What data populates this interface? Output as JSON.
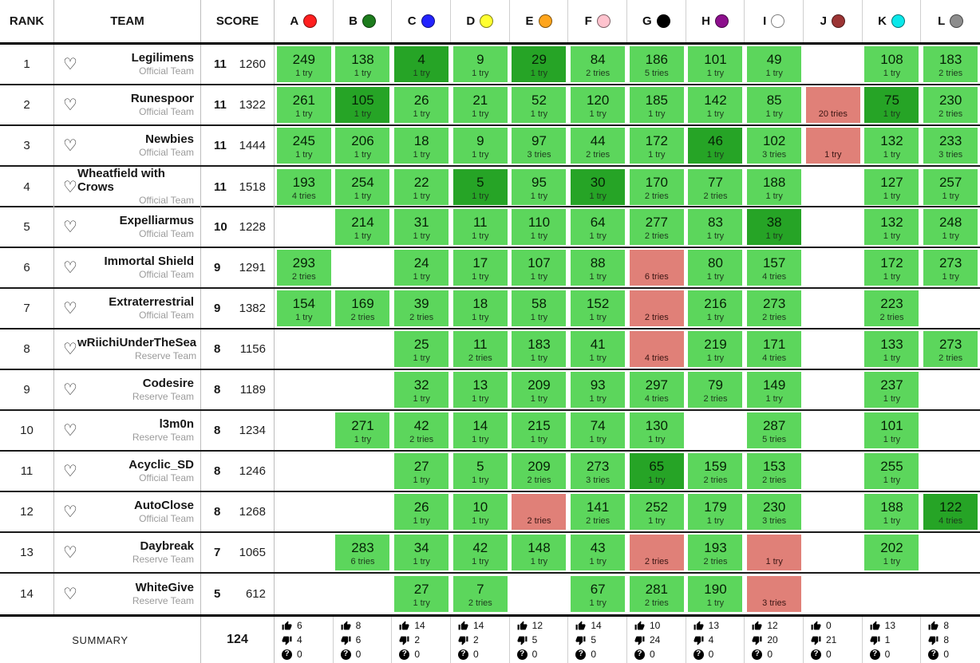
{
  "header": {
    "rank_label": "RANK",
    "team_label": "TEAM",
    "score_label": "SCORE",
    "problems": [
      {
        "letter": "A",
        "color": "#ff1f1f"
      },
      {
        "letter": "B",
        "color": "#1d7c1d"
      },
      {
        "letter": "C",
        "color": "#2323ff"
      },
      {
        "letter": "D",
        "color": "#ffff30"
      },
      {
        "letter": "E",
        "color": "#ffa51c"
      },
      {
        "letter": "F",
        "color": "#ffc3ce"
      },
      {
        "letter": "G",
        "color": "#000000"
      },
      {
        "letter": "H",
        "color": "#8d0f8d"
      },
      {
        "letter": "I",
        "color": "#ffffff"
      },
      {
        "letter": "J",
        "color": "#9c3434"
      },
      {
        "letter": "K",
        "color": "#0ae8ea"
      },
      {
        "letter": "L",
        "color": "#8d8d8d"
      }
    ]
  },
  "colors": {
    "solved": "#5cd65c",
    "first_to_solve": "#26a426",
    "failed": "#e08078"
  },
  "rows": [
    {
      "rank": "1",
      "name": "Legilimens",
      "type": "Official Team",
      "solved": "11",
      "penalty": "1260",
      "cells": [
        {
          "state": "solved",
          "time": "249",
          "tries": "1 try"
        },
        {
          "state": "solved",
          "time": "138",
          "tries": "1 try"
        },
        {
          "state": "first",
          "time": "4",
          "tries": "1 try"
        },
        {
          "state": "solved",
          "time": "9",
          "tries": "1 try"
        },
        {
          "state": "first",
          "time": "29",
          "tries": "1 try"
        },
        {
          "state": "solved",
          "time": "84",
          "tries": "2 tries"
        },
        {
          "state": "solved",
          "time": "186",
          "tries": "5 tries"
        },
        {
          "state": "solved",
          "time": "101",
          "tries": "1 try"
        },
        {
          "state": "solved",
          "time": "49",
          "tries": "1 try"
        },
        {
          "state": "empty"
        },
        {
          "state": "solved",
          "time": "108",
          "tries": "1 try"
        },
        {
          "state": "solved",
          "time": "183",
          "tries": "2 tries"
        }
      ]
    },
    {
      "rank": "2",
      "name": "Runespoor",
      "type": "Official Team",
      "solved": "11",
      "penalty": "1322",
      "cells": [
        {
          "state": "solved",
          "time": "261",
          "tries": "1 try"
        },
        {
          "state": "first",
          "time": "105",
          "tries": "1 try"
        },
        {
          "state": "solved",
          "time": "26",
          "tries": "1 try"
        },
        {
          "state": "solved",
          "time": "21",
          "tries": "1 try"
        },
        {
          "state": "solved",
          "time": "52",
          "tries": "1 try"
        },
        {
          "state": "solved",
          "time": "120",
          "tries": "1 try"
        },
        {
          "state": "solved",
          "time": "185",
          "tries": "1 try"
        },
        {
          "state": "solved",
          "time": "142",
          "tries": "1 try"
        },
        {
          "state": "solved",
          "time": "85",
          "tries": "1 try"
        },
        {
          "state": "failed",
          "tries": "20 tries"
        },
        {
          "state": "first",
          "time": "75",
          "tries": "1 try"
        },
        {
          "state": "solved",
          "time": "230",
          "tries": "2 tries"
        }
      ]
    },
    {
      "rank": "3",
      "name": "Newbies",
      "type": "Official Team",
      "solved": "11",
      "penalty": "1444",
      "cells": [
        {
          "state": "solved",
          "time": "245",
          "tries": "1 try"
        },
        {
          "state": "solved",
          "time": "206",
          "tries": "1 try"
        },
        {
          "state": "solved",
          "time": "18",
          "tries": "1 try"
        },
        {
          "state": "solved",
          "time": "9",
          "tries": "1 try"
        },
        {
          "state": "solved",
          "time": "97",
          "tries": "3 tries"
        },
        {
          "state": "solved",
          "time": "44",
          "tries": "2 tries"
        },
        {
          "state": "solved",
          "time": "172",
          "tries": "1 try"
        },
        {
          "state": "first",
          "time": "46",
          "tries": "1 try"
        },
        {
          "state": "solved",
          "time": "102",
          "tries": "3 tries"
        },
        {
          "state": "failed",
          "tries": "1 try"
        },
        {
          "state": "solved",
          "time": "132",
          "tries": "1 try"
        },
        {
          "state": "solved",
          "time": "233",
          "tries": "3 tries"
        }
      ]
    },
    {
      "rank": "4",
      "name": "Wheatfield with Crows",
      "type": "Official Team",
      "solved": "11",
      "penalty": "1518",
      "cells": [
        {
          "state": "solved",
          "time": "193",
          "tries": "4 tries"
        },
        {
          "state": "solved",
          "time": "254",
          "tries": "1 try"
        },
        {
          "state": "solved",
          "time": "22",
          "tries": "1 try"
        },
        {
          "state": "first",
          "time": "5",
          "tries": "1 try"
        },
        {
          "state": "solved",
          "time": "95",
          "tries": "1 try"
        },
        {
          "state": "first",
          "time": "30",
          "tries": "1 try"
        },
        {
          "state": "solved",
          "time": "170",
          "tries": "2 tries"
        },
        {
          "state": "solved",
          "time": "77",
          "tries": "2 tries"
        },
        {
          "state": "solved",
          "time": "188",
          "tries": "1 try"
        },
        {
          "state": "empty"
        },
        {
          "state": "solved",
          "time": "127",
          "tries": "1 try"
        },
        {
          "state": "solved",
          "time": "257",
          "tries": "1 try"
        }
      ]
    },
    {
      "rank": "5",
      "name": "Expelliarmus",
      "type": "Official Team",
      "solved": "10",
      "penalty": "1228",
      "cells": [
        {
          "state": "empty"
        },
        {
          "state": "solved",
          "time": "214",
          "tries": "1 try"
        },
        {
          "state": "solved",
          "time": "31",
          "tries": "1 try"
        },
        {
          "state": "solved",
          "time": "11",
          "tries": "1 try"
        },
        {
          "state": "solved",
          "time": "110",
          "tries": "1 try"
        },
        {
          "state": "solved",
          "time": "64",
          "tries": "1 try"
        },
        {
          "state": "solved",
          "time": "277",
          "tries": "2 tries"
        },
        {
          "state": "solved",
          "time": "83",
          "tries": "1 try"
        },
        {
          "state": "first",
          "time": "38",
          "tries": "1 try"
        },
        {
          "state": "empty"
        },
        {
          "state": "solved",
          "time": "132",
          "tries": "1 try"
        },
        {
          "state": "solved",
          "time": "248",
          "tries": "1 try"
        }
      ]
    },
    {
      "rank": "6",
      "name": "Immortal Shield",
      "type": "Official Team",
      "solved": "9",
      "penalty": "1291",
      "cells": [
        {
          "state": "solved",
          "time": "293",
          "tries": "2 tries"
        },
        {
          "state": "empty"
        },
        {
          "state": "solved",
          "time": "24",
          "tries": "1 try"
        },
        {
          "state": "solved",
          "time": "17",
          "tries": "1 try"
        },
        {
          "state": "solved",
          "time": "107",
          "tries": "1 try"
        },
        {
          "state": "solved",
          "time": "88",
          "tries": "1 try"
        },
        {
          "state": "failed",
          "tries": "6 tries"
        },
        {
          "state": "solved",
          "time": "80",
          "tries": "1 try"
        },
        {
          "state": "solved",
          "time": "157",
          "tries": "4 tries"
        },
        {
          "state": "empty"
        },
        {
          "state": "solved",
          "time": "172",
          "tries": "1 try"
        },
        {
          "state": "solved",
          "time": "273",
          "tries": "1 try"
        }
      ]
    },
    {
      "rank": "7",
      "name": "Extraterrestrial",
      "type": "Official Team",
      "solved": "9",
      "penalty": "1382",
      "cells": [
        {
          "state": "solved",
          "time": "154",
          "tries": "1 try"
        },
        {
          "state": "solved",
          "time": "169",
          "tries": "2 tries"
        },
        {
          "state": "solved",
          "time": "39",
          "tries": "2 tries"
        },
        {
          "state": "solved",
          "time": "18",
          "tries": "1 try"
        },
        {
          "state": "solved",
          "time": "58",
          "tries": "1 try"
        },
        {
          "state": "solved",
          "time": "152",
          "tries": "1 try"
        },
        {
          "state": "failed",
          "tries": "2 tries"
        },
        {
          "state": "solved",
          "time": "216",
          "tries": "1 try"
        },
        {
          "state": "solved",
          "time": "273",
          "tries": "2 tries"
        },
        {
          "state": "empty"
        },
        {
          "state": "solved",
          "time": "223",
          "tries": "2 tries"
        },
        {
          "state": "empty"
        }
      ]
    },
    {
      "rank": "8",
      "name": "wRiichiUnderTheSea",
      "type": "Reserve Team",
      "solved": "8",
      "penalty": "1156",
      "cells": [
        {
          "state": "empty"
        },
        {
          "state": "empty"
        },
        {
          "state": "solved",
          "time": "25",
          "tries": "1 try"
        },
        {
          "state": "solved",
          "time": "11",
          "tries": "2 tries"
        },
        {
          "state": "solved",
          "time": "183",
          "tries": "1 try"
        },
        {
          "state": "solved",
          "time": "41",
          "tries": "1 try"
        },
        {
          "state": "failed",
          "tries": "4 tries"
        },
        {
          "state": "solved",
          "time": "219",
          "tries": "1 try"
        },
        {
          "state": "solved",
          "time": "171",
          "tries": "4 tries"
        },
        {
          "state": "empty"
        },
        {
          "state": "solved",
          "time": "133",
          "tries": "1 try"
        },
        {
          "state": "solved",
          "time": "273",
          "tries": "2 tries"
        }
      ]
    },
    {
      "rank": "9",
      "name": "Codesire",
      "type": "Reserve Team",
      "solved": "8",
      "penalty": "1189",
      "cells": [
        {
          "state": "empty"
        },
        {
          "state": "empty"
        },
        {
          "state": "solved",
          "time": "32",
          "tries": "1 try"
        },
        {
          "state": "solved",
          "time": "13",
          "tries": "1 try"
        },
        {
          "state": "solved",
          "time": "209",
          "tries": "1 try"
        },
        {
          "state": "solved",
          "time": "93",
          "tries": "1 try"
        },
        {
          "state": "solved",
          "time": "297",
          "tries": "4 tries"
        },
        {
          "state": "solved",
          "time": "79",
          "tries": "2 tries"
        },
        {
          "state": "solved",
          "time": "149",
          "tries": "1 try"
        },
        {
          "state": "empty"
        },
        {
          "state": "solved",
          "time": "237",
          "tries": "1 try"
        },
        {
          "state": "empty"
        }
      ]
    },
    {
      "rank": "10",
      "name": "l3m0n",
      "type": "Reserve Team",
      "solved": "8",
      "penalty": "1234",
      "cells": [
        {
          "state": "empty"
        },
        {
          "state": "solved",
          "time": "271",
          "tries": "1 try"
        },
        {
          "state": "solved",
          "time": "42",
          "tries": "2 tries"
        },
        {
          "state": "solved",
          "time": "14",
          "tries": "1 try"
        },
        {
          "state": "solved",
          "time": "215",
          "tries": "1 try"
        },
        {
          "state": "solved",
          "time": "74",
          "tries": "1 try"
        },
        {
          "state": "solved",
          "time": "130",
          "tries": "1 try"
        },
        {
          "state": "empty"
        },
        {
          "state": "solved",
          "time": "287",
          "tries": "5 tries"
        },
        {
          "state": "empty"
        },
        {
          "state": "solved",
          "time": "101",
          "tries": "1 try"
        },
        {
          "state": "empty"
        }
      ]
    },
    {
      "rank": "11",
      "name": "Acyclic_SD",
      "type": "Official Team",
      "solved": "8",
      "penalty": "1246",
      "cells": [
        {
          "state": "empty"
        },
        {
          "state": "empty"
        },
        {
          "state": "solved",
          "time": "27",
          "tries": "1 try"
        },
        {
          "state": "solved",
          "time": "5",
          "tries": "1 try"
        },
        {
          "state": "solved",
          "time": "209",
          "tries": "2 tries"
        },
        {
          "state": "solved",
          "time": "273",
          "tries": "3 tries"
        },
        {
          "state": "first",
          "time": "65",
          "tries": "1 try"
        },
        {
          "state": "solved",
          "time": "159",
          "tries": "2 tries"
        },
        {
          "state": "solved",
          "time": "153",
          "tries": "2 tries"
        },
        {
          "state": "empty"
        },
        {
          "state": "solved",
          "time": "255",
          "tries": "1 try"
        },
        {
          "state": "empty"
        }
      ]
    },
    {
      "rank": "12",
      "name": "AutoClose",
      "type": "Official Team",
      "solved": "8",
      "penalty": "1268",
      "cells": [
        {
          "state": "empty"
        },
        {
          "state": "empty"
        },
        {
          "state": "solved",
          "time": "26",
          "tries": "1 try"
        },
        {
          "state": "solved",
          "time": "10",
          "tries": "1 try"
        },
        {
          "state": "failed",
          "tries": "2 tries"
        },
        {
          "state": "solved",
          "time": "141",
          "tries": "2 tries"
        },
        {
          "state": "solved",
          "time": "252",
          "tries": "1 try"
        },
        {
          "state": "solved",
          "time": "179",
          "tries": "1 try"
        },
        {
          "state": "solved",
          "time": "230",
          "tries": "3 tries"
        },
        {
          "state": "empty"
        },
        {
          "state": "solved",
          "time": "188",
          "tries": "1 try"
        },
        {
          "state": "first",
          "time": "122",
          "tries": "4 tries"
        }
      ]
    },
    {
      "rank": "13",
      "name": "Daybreak",
      "type": "Reserve Team",
      "solved": "7",
      "penalty": "1065",
      "cells": [
        {
          "state": "empty"
        },
        {
          "state": "solved",
          "time": "283",
          "tries": "6 tries"
        },
        {
          "state": "solved",
          "time": "34",
          "tries": "1 try"
        },
        {
          "state": "solved",
          "time": "42",
          "tries": "1 try"
        },
        {
          "state": "solved",
          "time": "148",
          "tries": "1 try"
        },
        {
          "state": "solved",
          "time": "43",
          "tries": "1 try"
        },
        {
          "state": "failed",
          "tries": "2 tries"
        },
        {
          "state": "solved",
          "time": "193",
          "tries": "2 tries"
        },
        {
          "state": "failed",
          "tries": "1 try"
        },
        {
          "state": "empty"
        },
        {
          "state": "solved",
          "time": "202",
          "tries": "1 try"
        },
        {
          "state": "empty"
        }
      ]
    },
    {
      "rank": "14",
      "name": "WhiteGive",
      "type": "Reserve Team",
      "solved": "5",
      "penalty": "612",
      "cells": [
        {
          "state": "empty"
        },
        {
          "state": "empty"
        },
        {
          "state": "solved",
          "time": "27",
          "tries": "1 try"
        },
        {
          "state": "solved",
          "time": "7",
          "tries": "2 tries"
        },
        {
          "state": "empty"
        },
        {
          "state": "solved",
          "time": "67",
          "tries": "1 try"
        },
        {
          "state": "solved",
          "time": "281",
          "tries": "2 tries"
        },
        {
          "state": "solved",
          "time": "190",
          "tries": "1 try"
        },
        {
          "state": "failed",
          "tries": "3 tries"
        },
        {
          "state": "empty"
        },
        {
          "state": "empty"
        },
        {
          "state": "empty"
        }
      ]
    }
  ],
  "summary": {
    "label": "SUMMARY",
    "total": "124",
    "icons": [
      "thumbs-up-icon",
      "thumbs-down-icon",
      "question-icon"
    ],
    "stats": [
      {
        "up": "6",
        "down": "4",
        "unknown": "0"
      },
      {
        "up": "8",
        "down": "6",
        "unknown": "0"
      },
      {
        "up": "14",
        "down": "2",
        "unknown": "0"
      },
      {
        "up": "14",
        "down": "2",
        "unknown": "0"
      },
      {
        "up": "12",
        "down": "5",
        "unknown": "0"
      },
      {
        "up": "14",
        "down": "5",
        "unknown": "0"
      },
      {
        "up": "10",
        "down": "24",
        "unknown": "0"
      },
      {
        "up": "13",
        "down": "4",
        "unknown": "0"
      },
      {
        "up": "12",
        "down": "20",
        "unknown": "0"
      },
      {
        "up": "0",
        "down": "21",
        "unknown": "0"
      },
      {
        "up": "13",
        "down": "1",
        "unknown": "0"
      },
      {
        "up": "8",
        "down": "8",
        "unknown": "0"
      }
    ]
  }
}
